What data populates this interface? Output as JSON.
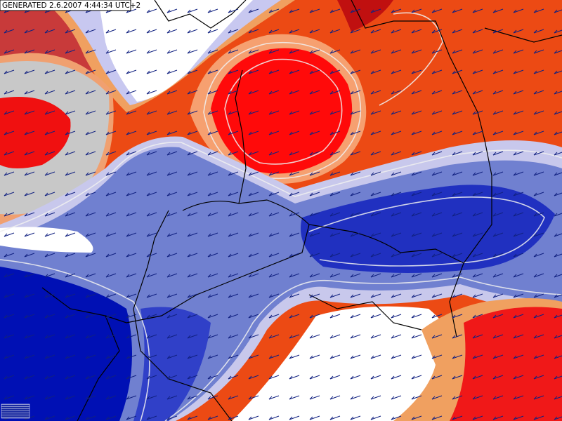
{
  "header": {
    "generated": "GENERATED 2.6.2007 4:44:34 UTC+2"
  }
}
